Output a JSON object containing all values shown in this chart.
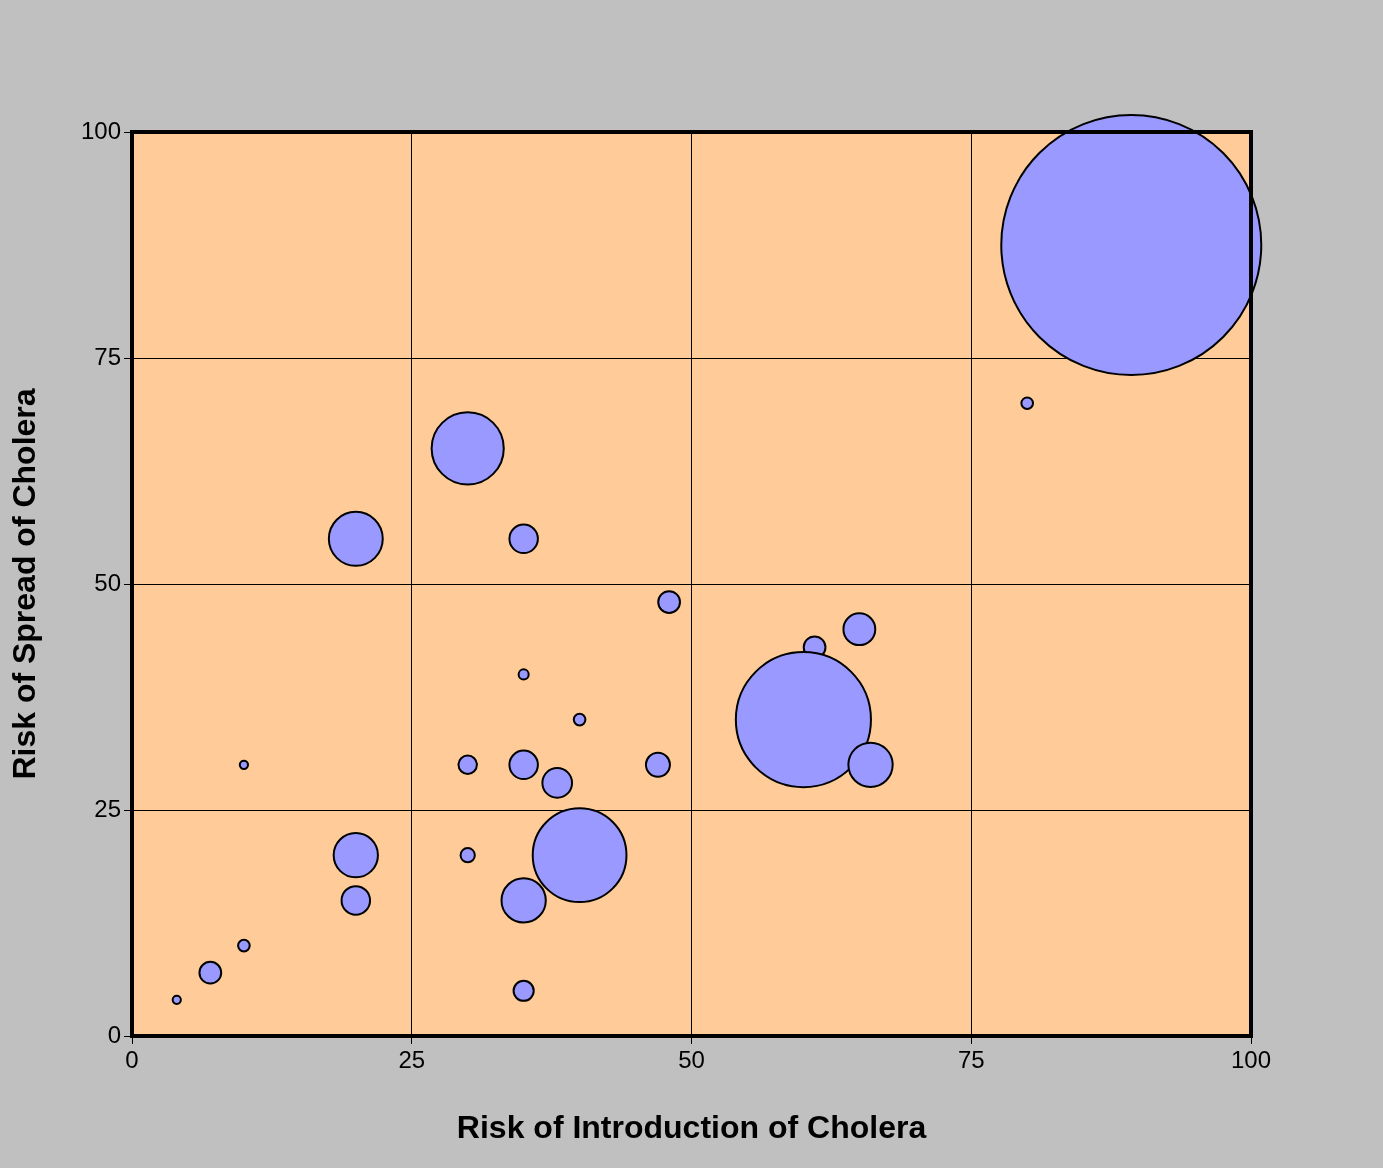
{
  "chart_data": {
    "type": "bubble",
    "xlabel": "Risk of Introduction of Cholera",
    "ylabel": "Risk of Spread of Cholera",
    "x": [
      89.3,
      80,
      30,
      20,
      35,
      48,
      65,
      61,
      35,
      40,
      60,
      10,
      30,
      35,
      47,
      66,
      38,
      20,
      30,
      40,
      20,
      35,
      10,
      7,
      35,
      4
    ],
    "values": [
      87.5,
      70,
      65,
      55,
      55,
      48,
      45,
      43,
      40,
      35,
      35,
      30,
      30,
      30,
      30,
      30,
      28,
      20,
      20,
      20,
      15,
      15,
      10,
      7,
      5,
      4
    ],
    "sizes": [
      1,
      0.002,
      0.077,
      0.043,
      0.012,
      0.007,
      0.015,
      0.007,
      0.0015,
      0.002,
      0.27,
      0.001,
      0.005,
      0.012,
      0.0085,
      0.029,
      0.013,
      0.029,
      0.003,
      0.13,
      0.012,
      0.029,
      0.002,
      0.007,
      0.006,
      0.001
    ],
    "color": "#9999ff",
    "xlim": [
      0,
      100
    ],
    "xticks": [
      0,
      25,
      50,
      75,
      100
    ],
    "ylim": [
      0,
      100
    ],
    "yticks": [
      0,
      25,
      50,
      75,
      100
    ],
    "grid": true,
    "legend": false
  }
}
